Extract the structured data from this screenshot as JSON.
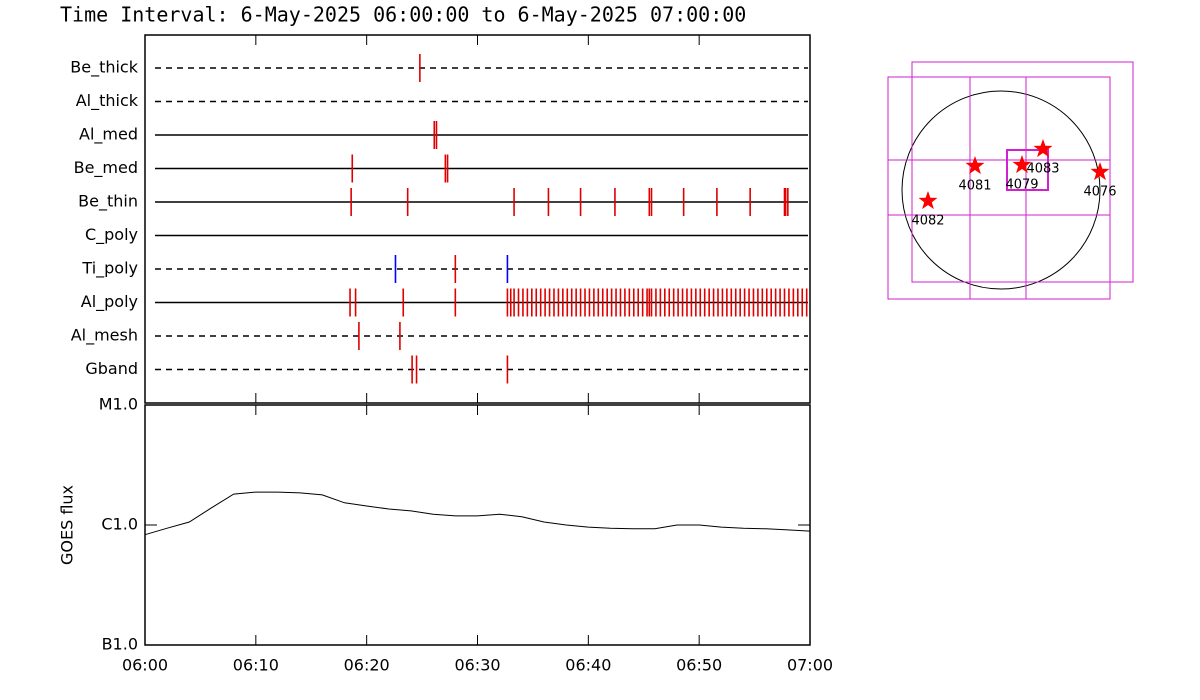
{
  "chart_data": [
    {
      "type": "event",
      "title": "Time Interval:  6-May-2025 06:00:00 to  6-May-2025 07:00:00",
      "xlim": [
        0,
        60
      ],
      "series": [
        {
          "name": "Be_thick",
          "line": "dashed",
          "color": "#e00000",
          "values": [
            24.8
          ]
        },
        {
          "name": "Al_thick",
          "line": "dashed",
          "color": "#e00000",
          "values": []
        },
        {
          "name": "Al_med",
          "line": "solid",
          "color": "#e00000",
          "values": [
            26.1,
            26.3
          ]
        },
        {
          "name": "Be_med",
          "line": "solid",
          "color": "#e00000",
          "values": [
            18.7,
            27.1,
            27.3
          ]
        },
        {
          "name": "Be_thin",
          "line": "solid",
          "color": "#e00000",
          "values": [
            18.6,
            23.7,
            33.3,
            36.4,
            39.3,
            42.4,
            45.5,
            45.7,
            48.6,
            51.6,
            54.6,
            57.7,
            57.8,
            58.0
          ]
        },
        {
          "name": "C_poly",
          "line": "solid",
          "color": "#e00000",
          "values": []
        },
        {
          "name": "Ti_poly",
          "line": "dashed",
          "color": "#e00000",
          "colors": [
            "#0000ff",
            "#e00000",
            "#0000ff"
          ],
          "values": [
            22.6,
            28.0,
            32.7
          ]
        },
        {
          "name": "Al_poly",
          "line": "solid",
          "color": "#e00000",
          "values": [
            18.5,
            19.0,
            23.3,
            28.0,
            32.7,
            33.0,
            33.3,
            33.7,
            34.1,
            34.5,
            34.9,
            35.3,
            35.7,
            36.1,
            36.5,
            36.9,
            37.3,
            37.7,
            38.1,
            38.5,
            38.9,
            39.3,
            39.7,
            40.1,
            40.5,
            40.9,
            41.3,
            41.7,
            42.1,
            42.5,
            42.9,
            43.3,
            43.7,
            44.1,
            44.5,
            44.9,
            45.3,
            45.5,
            45.7,
            46.1,
            46.5,
            46.9,
            47.3,
            47.7,
            48.1,
            48.5,
            48.9,
            49.3,
            49.7,
            50.1,
            50.5,
            50.9,
            51.3,
            51.7,
            52.1,
            52.5,
            52.9,
            53.3,
            53.7,
            54.1,
            54.5,
            54.9,
            55.3,
            55.7,
            56.1,
            56.5,
            56.9,
            57.3,
            57.7,
            58.1,
            58.5,
            58.9,
            59.3,
            59.7
          ]
        },
        {
          "name": "Al_mesh",
          "line": "dashed",
          "color": "#e00000",
          "values": [
            19.3,
            23.0
          ]
        },
        {
          "name": "Gband",
          "line": "dashed",
          "color": "#e00000",
          "values": [
            24.1,
            24.5,
            32.7
          ]
        }
      ]
    },
    {
      "type": "line",
      "ylabel": "GOES flux",
      "log_y": true,
      "color": "#000000",
      "xlim": [
        0,
        60
      ],
      "xticks": [
        {
          "value": 0,
          "label": "06:00"
        },
        {
          "value": 10,
          "label": "06:10"
        },
        {
          "value": 20,
          "label": "06:20"
        },
        {
          "value": 30,
          "label": "06:30"
        },
        {
          "value": 40,
          "label": "06:40"
        },
        {
          "value": 50,
          "label": "06:50"
        },
        {
          "value": 60,
          "label": "07:00"
        }
      ],
      "ylim": [
        1e-07,
        1e-05
      ],
      "yticks": [
        {
          "value": 1e-05,
          "label": "M1.0"
        },
        {
          "value": 1e-06,
          "label": "C1.0"
        },
        {
          "value": 1e-07,
          "label": "B1.0"
        }
      ],
      "x": [
        0,
        2,
        4,
        6,
        8,
        10,
        12,
        14,
        16,
        18,
        20,
        22,
        24,
        26,
        28,
        30,
        32,
        34,
        36,
        38,
        40,
        42,
        44,
        46,
        48,
        50,
        52,
        54,
        56,
        58,
        60
      ],
      "values": [
        8.3e-07,
        9.4e-07,
        1.06e-06,
        1.39e-06,
        1.81e-06,
        1.88e-06,
        1.88e-06,
        1.85e-06,
        1.78e-06,
        1.53e-06,
        1.44e-06,
        1.36e-06,
        1.31e-06,
        1.23e-06,
        1.19e-06,
        1.19e-06,
        1.23e-06,
        1.17e-06,
        1.06e-06,
        1e-06,
        9.6e-07,
        9.4e-07,
        9.3e-07,
        9.3e-07,
        1e-06,
        1e-06,
        9.6e-07,
        9.4e-07,
        9.3e-07,
        9.1e-07,
        8.9e-07
      ]
    },
    {
      "type": "map",
      "labels": [
        "4082",
        "4081",
        "4079",
        "4083",
        "4076"
      ]
    }
  ]
}
